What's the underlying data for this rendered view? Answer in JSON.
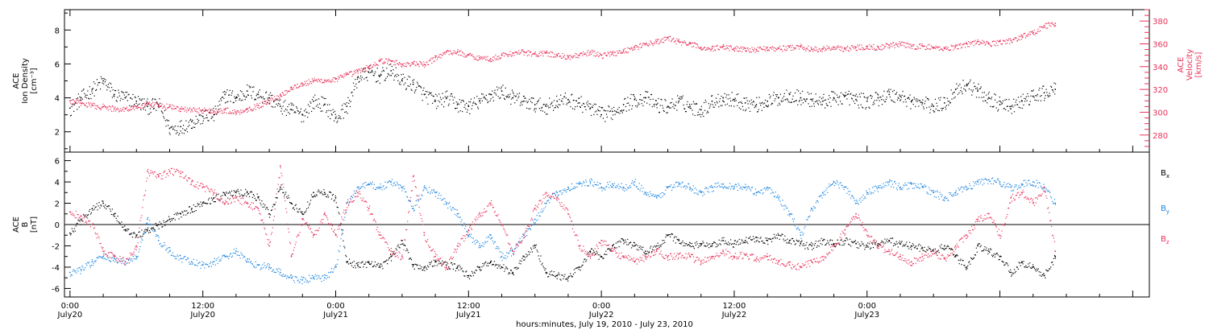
{
  "chart_data": [
    {
      "type": "scatter",
      "panel": "top",
      "ylabel_lines": [
        "ACE",
        "Ion Density",
        "[cm⁻³]"
      ],
      "ylim": [
        0.8,
        9.2
      ],
      "yticks": [
        2,
        4,
        6,
        8
      ],
      "y2label_lines": [
        "ACE",
        "Velocity",
        "[km/s]"
      ],
      "y2lim": [
        265,
        390
      ],
      "y2ticks": [
        280,
        300,
        320,
        340,
        360,
        380
      ],
      "xlim_hours": [
        -0.5,
        97.5
      ],
      "series": [
        {
          "axis": "left",
          "color": "#000000",
          "x": [
            0,
            1,
            2,
            3,
            4,
            5,
            6,
            7,
            8,
            9,
            10,
            11,
            12,
            13,
            14,
            15,
            16,
            17,
            18,
            19,
            20,
            21,
            22,
            23,
            24,
            25,
            26,
            27,
            28,
            29,
            30,
            31,
            32,
            33,
            34,
            35,
            36,
            37,
            38,
            39,
            40,
            41,
            42,
            43,
            44,
            45,
            46,
            47,
            48,
            49,
            50,
            51,
            52,
            53,
            54,
            55,
            56,
            57,
            58,
            59,
            60,
            61,
            62,
            63,
            64,
            65,
            66,
            67,
            68,
            69,
            70,
            71,
            72,
            73,
            74,
            75,
            76,
            77,
            78,
            79,
            80,
            81,
            82,
            83,
            84,
            85,
            86,
            87,
            88,
            89
          ],
          "y": [
            3.4,
            4.0,
            4.5,
            5.0,
            4.2,
            4.0,
            3.8,
            3.5,
            3.6,
            2.2,
            2.3,
            2.6,
            2.9,
            3.0,
            4.2,
            4.0,
            4.4,
            4.2,
            4.0,
            3.5,
            3.3,
            3.0,
            3.8,
            3.6,
            2.8,
            3.5,
            5.2,
            5.5,
            5.3,
            5.6,
            5.0,
            4.8,
            4.2,
            3.8,
            4.0,
            3.6,
            3.5,
            3.8,
            4.2,
            4.4,
            4.0,
            3.8,
            3.6,
            3.5,
            3.8,
            3.9,
            3.7,
            3.4,
            3.0,
            3.2,
            3.6,
            3.9,
            4.0,
            3.6,
            3.5,
            3.8,
            3.5,
            3.3,
            3.8,
            4.0,
            3.9,
            3.7,
            3.6,
            3.8,
            4.0,
            4.2,
            4.0,
            3.9,
            3.8,
            4.0,
            4.1,
            3.9,
            3.8,
            4.0,
            4.2,
            4.1,
            3.8,
            3.7,
            3.5,
            3.7,
            4.5,
            4.8,
            4.4,
            4.0,
            3.6,
            3.5,
            3.8,
            4.1,
            4.3,
            4.5
          ]
        },
        {
          "axis": "right",
          "color": "#e8325a",
          "x": [
            0,
            1,
            2,
            3,
            4,
            5,
            6,
            7,
            8,
            9,
            10,
            11,
            12,
            13,
            14,
            15,
            16,
            17,
            18,
            19,
            20,
            21,
            22,
            23,
            24,
            25,
            26,
            27,
            28,
            29,
            30,
            31,
            32,
            33,
            34,
            35,
            36,
            37,
            38,
            39,
            40,
            41,
            42,
            43,
            44,
            45,
            46,
            47,
            48,
            49,
            50,
            51,
            52,
            53,
            54,
            55,
            56,
            57,
            58,
            59,
            60,
            61,
            62,
            63,
            64,
            65,
            66,
            67,
            68,
            69,
            70,
            71,
            72,
            73,
            74,
            75,
            76,
            77,
            78,
            79,
            80,
            81,
            82,
            83,
            84,
            85,
            86,
            87,
            88,
            89
          ],
          "y": [
            310,
            308,
            306,
            305,
            303,
            303,
            305,
            307,
            306,
            305,
            303,
            302,
            302,
            301,
            302,
            300,
            303,
            306,
            310,
            315,
            322,
            325,
            328,
            328,
            329,
            333,
            336,
            340,
            345,
            345,
            342,
            343,
            342,
            348,
            353,
            353,
            350,
            348,
            347,
            350,
            352,
            353,
            351,
            352,
            350,
            349,
            350,
            353,
            350,
            352,
            354,
            357,
            360,
            362,
            365,
            362,
            360,
            357,
            356,
            358,
            356,
            356,
            355,
            357,
            356,
            357,
            358,
            355,
            356,
            357,
            356,
            357,
            358,
            357,
            359,
            360,
            358,
            358,
            357,
            356,
            358,
            360,
            362,
            360,
            362,
            363,
            367,
            370,
            376,
            378
          ]
        }
      ]
    },
    {
      "type": "scatter",
      "panel": "bottom",
      "ylabel_lines": [
        "ACE",
        "B",
        "[nT]"
      ],
      "ylim": [
        -6.8,
        6.8
      ],
      "yticks": [
        -6,
        -4,
        -2,
        0,
        2,
        4,
        6
      ],
      "zero_line": true,
      "xlim_hours": [
        -0.5,
        97.5
      ],
      "xticks_hours": [
        0,
        12,
        24,
        36,
        48,
        60,
        72,
        84,
        96
      ],
      "xtick_labels": [
        [
          "0:00",
          "July20"
        ],
        [
          "12:00",
          "July20"
        ],
        [
          "0:00",
          "July21"
        ],
        [
          "12:00",
          "July21"
        ],
        [
          "0:00",
          "July22"
        ],
        [
          "12:00",
          "July22"
        ],
        [
          "0:00",
          "July23"
        ]
      ],
      "xtick_label_hours": [
        0,
        12,
        24,
        36,
        48,
        60,
        72
      ],
      "xlabel": "hours:minutes, July 19, 2010 - July 23, 2010",
      "legend": [
        {
          "base": "B",
          "sub": "x",
          "color": "#000000"
        },
        {
          "base": "B",
          "sub": "y",
          "color": "#1f86e0"
        },
        {
          "base": "B",
          "sub": "z",
          "color": "#e8325a"
        }
      ],
      "series": [
        {
          "name": "Bx",
          "color": "#000000",
          "x": [
            0,
            1,
            2,
            3,
            4,
            5,
            6,
            7,
            8,
            9,
            10,
            11,
            12,
            13,
            14,
            15,
            16,
            17,
            18,
            19,
            20,
            21,
            22,
            23,
            24,
            25,
            26,
            27,
            28,
            29,
            30,
            31,
            32,
            33,
            34,
            35,
            36,
            37,
            38,
            39,
            40,
            41,
            42,
            43,
            44,
            45,
            46,
            47,
            48,
            49,
            50,
            51,
            52,
            53,
            54,
            55,
            56,
            57,
            58,
            59,
            60,
            61,
            62,
            63,
            64,
            65,
            66,
            67,
            68,
            69,
            70,
            71,
            72,
            73,
            74,
            75,
            76,
            77,
            78,
            79,
            80,
            81,
            82,
            83,
            84,
            85,
            86,
            87,
            88,
            89
          ],
          "y": [
            -0.8,
            0.5,
            1.5,
            2.0,
            1.0,
            -0.5,
            -1.0,
            -0.5,
            0.0,
            0.5,
            1.0,
            1.5,
            2.0,
            2.5,
            2.8,
            3.0,
            3.0,
            2.5,
            1.0,
            3.5,
            2.0,
            1.0,
            3.0,
            3.0,
            2.5,
            -3.5,
            -3.8,
            -3.6,
            -4.0,
            -3.0,
            -1.5,
            -3.8,
            -4.0,
            -3.5,
            -3.8,
            -4.0,
            -4.8,
            -4.0,
            -3.5,
            -4.0,
            -4.5,
            -3.0,
            -2.0,
            -4.5,
            -4.8,
            -5.0,
            -4.0,
            -2.5,
            -3.0,
            -2.0,
            -1.5,
            -2.0,
            -2.5,
            -2.0,
            -1.0,
            -1.5,
            -2.0,
            -1.8,
            -2.0,
            -1.5,
            -1.8,
            -1.5,
            -1.2,
            -1.5,
            -1.0,
            -1.5,
            -1.8,
            -2.0,
            -1.5,
            -1.8,
            -1.5,
            -1.8,
            -2.0,
            -1.8,
            -1.5,
            -1.8,
            -2.0,
            -2.2,
            -2.5,
            -2.0,
            -3.0,
            -4.0,
            -2.0,
            -2.5,
            -3.0,
            -4.5,
            -3.5,
            -4.0,
            -4.8,
            -3.0
          ]
        },
        {
          "name": "By",
          "color": "#1f86e0",
          "x": [
            0,
            1,
            2,
            3,
            4,
            5,
            6,
            7,
            8,
            9,
            10,
            11,
            12,
            13,
            14,
            15,
            16,
            17,
            18,
            19,
            20,
            21,
            22,
            23,
            24,
            25,
            26,
            27,
            28,
            29,
            30,
            31,
            32,
            33,
            34,
            35,
            36,
            37,
            38,
            39,
            40,
            41,
            42,
            43,
            44,
            45,
            46,
            47,
            48,
            49,
            50,
            51,
            52,
            53,
            54,
            55,
            56,
            57,
            58,
            59,
            60,
            61,
            62,
            63,
            64,
            65,
            66,
            67,
            68,
            69,
            70,
            71,
            72,
            73,
            74,
            75,
            76,
            77,
            78,
            79,
            80,
            81,
            82,
            83,
            84,
            85,
            86,
            87,
            88,
            89
          ],
          "y": [
            -4.5,
            -4.2,
            -3.5,
            -3.0,
            -3.2,
            -3.5,
            -3.0,
            0.5,
            -1.5,
            -2.5,
            -3.2,
            -3.5,
            -3.8,
            -3.5,
            -3.0,
            -2.5,
            -3.5,
            -3.8,
            -4.0,
            -4.5,
            -5.0,
            -5.2,
            -5.0,
            -5.0,
            -4.0,
            2.0,
            3.5,
            3.8,
            3.5,
            4.0,
            3.5,
            1.5,
            3.5,
            3.0,
            2.0,
            1.0,
            -1.0,
            -2.0,
            -1.0,
            -3.0,
            -2.5,
            -1.0,
            0.5,
            2.0,
            3.0,
            3.5,
            3.8,
            4.0,
            3.5,
            3.8,
            3.5,
            4.0,
            3.0,
            2.5,
            3.5,
            3.8,
            3.5,
            3.0,
            3.5,
            3.8,
            3.6,
            3.5,
            3.0,
            3.5,
            2.5,
            1.0,
            -1.0,
            1.5,
            3.0,
            4.0,
            3.5,
            2.0,
            3.0,
            3.5,
            4.0,
            3.5,
            3.8,
            3.5,
            3.0,
            2.5,
            3.0,
            3.5,
            4.0,
            4.2,
            4.0,
            3.5,
            3.8,
            4.0,
            3.5,
            2.0
          ]
        },
        {
          "name": "Bz",
          "color": "#e8325a",
          "x": [
            0,
            1,
            2,
            3,
            4,
            5,
            6,
            7,
            8,
            9,
            10,
            11,
            12,
            13,
            14,
            15,
            16,
            17,
            18,
            19,
            20,
            21,
            22,
            23,
            24,
            25,
            26,
            27,
            28,
            29,
            30,
            31,
            32,
            33,
            34,
            35,
            36,
            37,
            38,
            39,
            40,
            41,
            42,
            43,
            44,
            45,
            46,
            47,
            48,
            49,
            50,
            51,
            52,
            53,
            54,
            55,
            56,
            57,
            58,
            59,
            60,
            61,
            62,
            63,
            64,
            65,
            66,
            67,
            68,
            69,
            70,
            71,
            72,
            73,
            74,
            75,
            76,
            77,
            78,
            79,
            80,
            81,
            82,
            83,
            84,
            85,
            86,
            87,
            88,
            89
          ],
          "y": [
            1.2,
            0.8,
            0.0,
            -2.5,
            -3.0,
            -3.5,
            -2.0,
            5.0,
            4.5,
            5.0,
            4.8,
            4.0,
            3.5,
            3.0,
            2.0,
            2.5,
            2.0,
            1.5,
            -2.0,
            5.5,
            -3.0,
            0.5,
            -1.0,
            1.0,
            -1.0,
            2.0,
            3.0,
            1.5,
            -1.0,
            -2.5,
            -3.0,
            4.5,
            -1.0,
            -3.0,
            -4.0,
            -2.0,
            -0.5,
            1.0,
            2.0,
            0.0,
            -2.5,
            -1.0,
            1.5,
            3.0,
            2.5,
            1.0,
            -2.0,
            -3.0,
            -1.5,
            -2.5,
            -3.0,
            -3.5,
            -3.0,
            -2.5,
            -3.0,
            -2.8,
            -3.0,
            -3.5,
            -3.0,
            -2.5,
            -3.0,
            -2.8,
            -3.2,
            -3.0,
            -3.5,
            -3.8,
            -4.0,
            -3.5,
            -3.0,
            -2.0,
            -0.5,
            1.0,
            -1.0,
            -2.0,
            -2.5,
            -3.0,
            -3.5,
            -3.0,
            -2.5,
            -3.2,
            -2.0,
            -1.0,
            0.5,
            1.0,
            -1.0,
            2.5,
            3.0,
            2.0,
            3.5,
            -2.5
          ]
        }
      ]
    }
  ]
}
